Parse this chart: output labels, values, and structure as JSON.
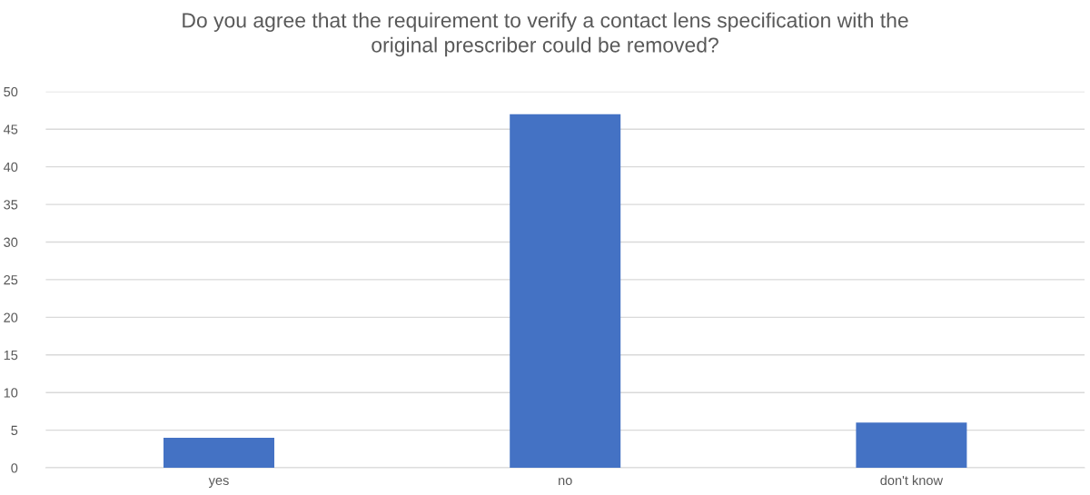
{
  "chart_data": {
    "type": "bar",
    "title": "Do you agree that the requirement to verify a contact lens specification with the\noriginal prescriber could be removed?",
    "categories": [
      "yes",
      "no",
      "don't know"
    ],
    "values": [
      4,
      47,
      6
    ],
    "color": "#4472c4",
    "ylim": [
      0,
      50
    ],
    "yticks": [
      0,
      5,
      10,
      15,
      20,
      25,
      30,
      35,
      40,
      45,
      50
    ],
    "grid": "y",
    "legend": false
  }
}
